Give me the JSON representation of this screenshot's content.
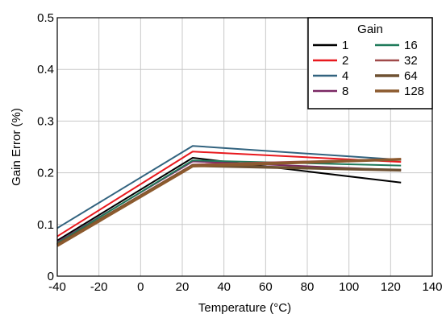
{
  "chart_data": {
    "type": "line",
    "xlabel": "Temperature (°C)",
    "ylabel": "Gain Error (%)",
    "xlim": [
      -40,
      140
    ],
    "ylim": [
      0,
      0.5
    ],
    "xticks": [
      -40,
      -20,
      0,
      20,
      40,
      60,
      80,
      100,
      120,
      140
    ],
    "yticks": [
      0,
      0.1,
      0.2,
      0.3,
      0.4,
      0.5
    ],
    "ytick_labels": [
      "0",
      "0.1",
      "0.2",
      "0.3",
      "0.4",
      "0.5"
    ],
    "grid": true,
    "legend": {
      "title": "Gain",
      "placement": "top-right",
      "columns": 2
    },
    "x": [
      -40,
      25,
      125
    ],
    "series": [
      {
        "name": "1",
        "color": "#000000",
        "values": [
          0.069,
          0.229,
          0.181
        ]
      },
      {
        "name": "2",
        "color": "#e8191e",
        "values": [
          0.077,
          0.241,
          0.221
        ]
      },
      {
        "name": "4",
        "color": "#32637f",
        "values": [
          0.093,
          0.252,
          0.225
        ]
      },
      {
        "name": "8",
        "color": "#7a2864",
        "values": [
          0.066,
          0.222,
          0.205
        ]
      },
      {
        "name": "16",
        "color": "#1f7a5a",
        "values": [
          0.064,
          0.224,
          0.214
        ]
      },
      {
        "name": "32",
        "color": "#a04a4a",
        "values": [
          0.062,
          0.216,
          0.227
        ]
      },
      {
        "name": "64",
        "color": "#6e5132",
        "values": [
          0.061,
          0.214,
          0.205
        ]
      },
      {
        "name": "128",
        "color": "#8c5a2e",
        "values": [
          0.059,
          0.213,
          0.226
        ]
      }
    ]
  }
}
